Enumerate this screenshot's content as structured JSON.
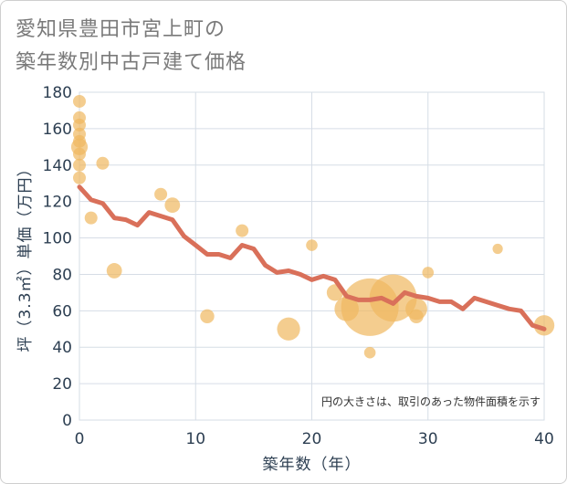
{
  "title_line1": "愛知県豊田市宮上町の",
  "title_line2": "築年数別中古戸建て価格",
  "chart_data": {
    "type": "scatter",
    "title": "愛知県豊田市宮上町の築年数別中古戸建て価格",
    "xlabel": "築年数（年）",
    "ylabel": "坪（3.3㎡）単価（万円）",
    "xlim": [
      0,
      40
    ],
    "ylim": [
      0,
      180
    ],
    "xticks": [
      0,
      10,
      20,
      30,
      40
    ],
    "yticks": [
      0,
      20,
      40,
      60,
      80,
      100,
      120,
      140,
      160,
      180
    ],
    "grid": true,
    "note": "円の大きさは、取引のあった物件面積を示す",
    "colors": {
      "bubble": "#f0b860",
      "line": "#d9705a"
    },
    "scatter": [
      {
        "x": 0,
        "y": 175,
        "size": 1
      },
      {
        "x": 0,
        "y": 166,
        "size": 1
      },
      {
        "x": 0,
        "y": 162,
        "size": 1
      },
      {
        "x": 0,
        "y": 157,
        "size": 1
      },
      {
        "x": 0,
        "y": 153,
        "size": 1
      },
      {
        "x": 0,
        "y": 150,
        "size": 1.3
      },
      {
        "x": 0,
        "y": 146,
        "size": 1
      },
      {
        "x": 0,
        "y": 140,
        "size": 1
      },
      {
        "x": 0,
        "y": 133,
        "size": 1
      },
      {
        "x": 1,
        "y": 111,
        "size": 1
      },
      {
        "x": 2,
        "y": 141,
        "size": 1
      },
      {
        "x": 3,
        "y": 82,
        "size": 1.2
      },
      {
        "x": 7,
        "y": 124,
        "size": 1
      },
      {
        "x": 8,
        "y": 118,
        "size": 1.2
      },
      {
        "x": 11,
        "y": 57,
        "size": 1.1
      },
      {
        "x": 14,
        "y": 104,
        "size": 1
      },
      {
        "x": 18,
        "y": 50,
        "size": 1.8
      },
      {
        "x": 20,
        "y": 96,
        "size": 0.9
      },
      {
        "x": 22,
        "y": 70,
        "size": 1.3
      },
      {
        "x": 23,
        "y": 61,
        "size": 1.9
      },
      {
        "x": 25,
        "y": 62,
        "size": 4.5
      },
      {
        "x": 25,
        "y": 37,
        "size": 0.9
      },
      {
        "x": 27,
        "y": 67,
        "size": 3.7
      },
      {
        "x": 29,
        "y": 57,
        "size": 1.1
      },
      {
        "x": 29,
        "y": 61,
        "size": 1.7
      },
      {
        "x": 30,
        "y": 81,
        "size": 0.9
      },
      {
        "x": 36,
        "y": 94,
        "size": 0.8
      },
      {
        "x": 40,
        "y": 52,
        "size": 1.6
      }
    ],
    "line": {
      "x": [
        0,
        1,
        2,
        3,
        4,
        5,
        6,
        7,
        8,
        9,
        10,
        11,
        12,
        13,
        14,
        15,
        16,
        17,
        18,
        19,
        20,
        21,
        22,
        23,
        24,
        25,
        26,
        27,
        28,
        29,
        30,
        31,
        32,
        33,
        34,
        35,
        36,
        37,
        38,
        39,
        40
      ],
      "y": [
        128,
        121,
        119,
        111,
        110,
        107,
        114,
        112,
        110,
        101,
        96,
        91,
        91,
        89,
        96,
        94,
        85,
        81,
        82,
        80,
        77,
        79,
        77,
        68,
        66,
        66,
        67,
        64,
        70,
        68,
        67,
        65,
        65,
        61,
        67,
        65,
        63,
        61,
        60,
        52,
        50
      ]
    }
  }
}
